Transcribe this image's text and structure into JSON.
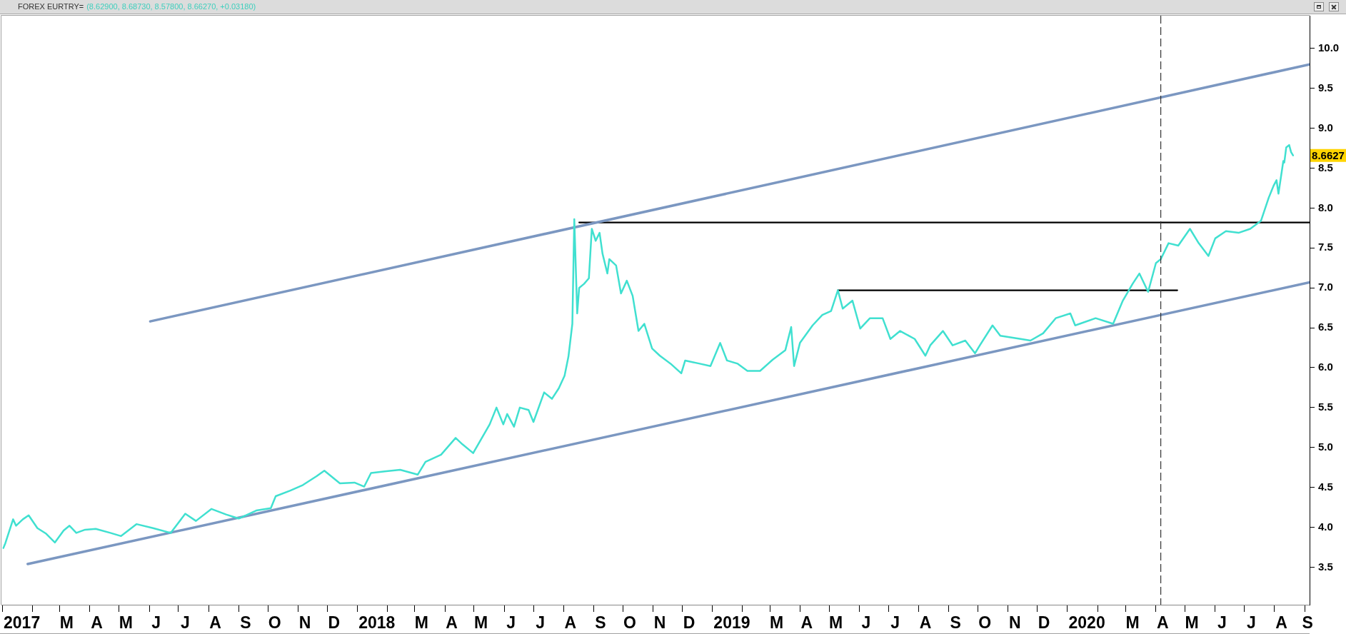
{
  "chart_data": {
    "type": "line",
    "title": "FOREX EURTRY=",
    "subtitle": "(8.62900, 8.68730, 8.57800, 8.66270, +0.03180)",
    "xlim": [
      "2016-12-31",
      "2020-09-06"
    ],
    "ylim": [
      3.03,
      10.41
    ],
    "xticks": [
      {
        "value": "2017-01",
        "label": null
      },
      {
        "value": "2017-01-21",
        "label": "2017"
      },
      {
        "value": "2017-02",
        "label": null
      },
      {
        "value": "2017-03",
        "label": null
      },
      {
        "value": "2017-03-08",
        "label": "M"
      },
      {
        "value": "2017-04",
        "label": null
      },
      {
        "value": "2017-04-08",
        "label": "A"
      },
      {
        "value": "2017-05",
        "label": null
      },
      {
        "value": "2017-05-08",
        "label": "M"
      },
      {
        "value": "2017-06",
        "label": null
      },
      {
        "value": "2017-06-08",
        "label": "J"
      },
      {
        "value": "2017-07",
        "label": null
      },
      {
        "value": "2017-07-08",
        "label": "J"
      },
      {
        "value": "2017-08",
        "label": null
      },
      {
        "value": "2017-08-08",
        "label": "A"
      },
      {
        "value": "2017-09",
        "label": null
      },
      {
        "value": "2017-09-08",
        "label": "S"
      },
      {
        "value": "2017-10",
        "label": null
      },
      {
        "value": "2017-10-08",
        "label": "O"
      },
      {
        "value": "2017-11",
        "label": null
      },
      {
        "value": "2017-11-08",
        "label": "N"
      },
      {
        "value": "2017-12",
        "label": null
      },
      {
        "value": "2017-12-08",
        "label": "D"
      },
      {
        "value": "2018-01",
        "label": null
      },
      {
        "value": "2018-01-21",
        "label": "2018"
      },
      {
        "value": "2018-02",
        "label": null
      },
      {
        "value": "2018-03",
        "label": null
      },
      {
        "value": "2018-03-08",
        "label": "M"
      },
      {
        "value": "2018-04",
        "label": null
      },
      {
        "value": "2018-04-08",
        "label": "A"
      },
      {
        "value": "2018-05",
        "label": null
      },
      {
        "value": "2018-05-08",
        "label": "M"
      },
      {
        "value": "2018-06",
        "label": null
      },
      {
        "value": "2018-06-08",
        "label": "J"
      },
      {
        "value": "2018-07",
        "label": null
      },
      {
        "value": "2018-07-08",
        "label": "J"
      },
      {
        "value": "2018-08",
        "label": null
      },
      {
        "value": "2018-08-08",
        "label": "A"
      },
      {
        "value": "2018-09",
        "label": null
      },
      {
        "value": "2018-09-08",
        "label": "S"
      },
      {
        "value": "2018-10",
        "label": null
      },
      {
        "value": "2018-10-08",
        "label": "O"
      },
      {
        "value": "2018-11",
        "label": null
      },
      {
        "value": "2018-11-08",
        "label": "N"
      },
      {
        "value": "2018-12",
        "label": null
      },
      {
        "value": "2018-12-08",
        "label": "D"
      },
      {
        "value": "2019-01",
        "label": null
      },
      {
        "value": "2019-01-21",
        "label": "2019"
      },
      {
        "value": "2019-02",
        "label": null
      },
      {
        "value": "2019-03",
        "label": null
      },
      {
        "value": "2019-03-08",
        "label": "M"
      },
      {
        "value": "2019-04",
        "label": null
      },
      {
        "value": "2019-04-08",
        "label": "A"
      },
      {
        "value": "2019-05",
        "label": null
      },
      {
        "value": "2019-05-08",
        "label": "M"
      },
      {
        "value": "2019-06",
        "label": null
      },
      {
        "value": "2019-06-08",
        "label": "J"
      },
      {
        "value": "2019-07",
        "label": null
      },
      {
        "value": "2019-07-08",
        "label": "J"
      },
      {
        "value": "2019-08",
        "label": null
      },
      {
        "value": "2019-08-08",
        "label": "A"
      },
      {
        "value": "2019-09",
        "label": null
      },
      {
        "value": "2019-09-08",
        "label": "S"
      },
      {
        "value": "2019-10",
        "label": null
      },
      {
        "value": "2019-10-08",
        "label": "O"
      },
      {
        "value": "2019-11",
        "label": null
      },
      {
        "value": "2019-11-08",
        "label": "N"
      },
      {
        "value": "2019-12",
        "label": null
      },
      {
        "value": "2019-12-08",
        "label": "D"
      },
      {
        "value": "2020-01",
        "label": null
      },
      {
        "value": "2020-01-21",
        "label": "2020"
      },
      {
        "value": "2020-02",
        "label": null
      },
      {
        "value": "2020-03",
        "label": null
      },
      {
        "value": "2020-03-08",
        "label": "M"
      },
      {
        "value": "2020-04",
        "label": null
      },
      {
        "value": "2020-04-08",
        "label": "A"
      },
      {
        "value": "2020-05",
        "label": null
      },
      {
        "value": "2020-05-08",
        "label": "M"
      },
      {
        "value": "2020-06",
        "label": null
      },
      {
        "value": "2020-06-08",
        "label": "J"
      },
      {
        "value": "2020-07",
        "label": null
      },
      {
        "value": "2020-07-08",
        "label": "J"
      },
      {
        "value": "2020-08",
        "label": null
      },
      {
        "value": "2020-08-08",
        "label": "A"
      },
      {
        "value": "2020-09",
        "label": null
      },
      {
        "value": "2020-09-04",
        "label": "S"
      }
    ],
    "yticks": [
      3.5,
      {
        "value": 4,
        "label": "4.0"
      },
      4.5,
      {
        "value": 5,
        "label": "5.0"
      },
      5.5,
      {
        "value": 6,
        "label": "6.0"
      },
      6.5,
      {
        "value": 7,
        "label": "7.0"
      },
      7.5,
      {
        "value": 8,
        "label": "8.0"
      },
      8.5,
      {
        "value": 9,
        "label": "9.0"
      },
      9.5,
      {
        "value": 10,
        "label": "10.0"
      }
    ],
    "series": [
      {
        "color": "#40e0d0",
        "x": [
          "2017-01-02",
          "2017-01-04",
          "2017-01-12",
          "2017-01-15",
          "2017-01-22",
          "2017-01-28",
          "2017-02-06",
          "2017-02-15",
          "2017-02-24",
          "2017-03-05",
          "2017-03-11",
          "2017-03-18",
          "2017-03-27",
          "2017-04-07",
          "2017-04-22",
          "2017-05-03",
          "2017-05-19",
          "2017-06-05",
          "2017-06-23",
          "2017-07-08",
          "2017-07-19",
          "2017-08-04",
          "2017-08-19",
          "2017-09-01",
          "2017-09-19",
          "2017-10-04",
          "2017-10-09",
          "2017-10-24",
          "2017-11-06",
          "2017-11-20",
          "2017-11-28",
          "2017-12-05",
          "2017-12-14",
          "2017-12-29",
          "2018-01-08",
          "2018-01-15",
          "2018-01-29",
          "2018-02-14",
          "2018-03-04",
          "2018-03-12",
          "2018-03-28",
          "2018-04-12",
          "2018-04-19",
          "2018-04-30",
          "2018-05-17",
          "2018-05-24",
          "2018-05-31",
          "2018-06-04",
          "2018-06-11",
          "2018-06-17",
          "2018-06-26",
          "2018-07-01",
          "2018-07-12",
          "2018-07-20",
          "2018-07-27",
          "2018-08-02",
          "2018-08-06",
          "2018-08-10",
          "2018-08-12",
          "2018-08-15",
          "2018-08-17",
          "2018-08-22",
          "2018-08-27",
          "2018-08-30",
          "2018-09-03",
          "2018-09-07",
          "2018-09-10",
          "2018-09-15",
          "2018-09-17",
          "2018-09-24",
          "2018-09-29",
          "2018-10-05",
          "2018-10-11",
          "2018-10-17",
          "2018-10-23",
          "2018-10-31",
          "2018-11-08",
          "2018-11-19",
          "2018-11-30",
          "2018-12-04",
          "2018-12-19",
          "2018-12-30",
          "2019-01-09",
          "2019-01-16",
          "2019-01-27",
          "2019-02-06",
          "2019-02-19",
          "2019-03-04",
          "2019-03-17",
          "2019-03-23",
          "2019-03-26",
          "2019-04-01",
          "2019-04-14",
          "2019-04-24",
          "2019-05-03",
          "2019-05-10",
          "2019-05-15",
          "2019-05-25",
          "2019-06-02",
          "2019-06-12",
          "2019-06-25",
          "2019-07-03",
          "2019-07-13",
          "2019-07-28",
          "2019-08-08",
          "2019-08-13",
          "2019-08-26",
          "2019-09-05",
          "2019-09-18",
          "2019-09-28",
          "2019-10-03",
          "2019-10-16",
          "2019-10-24",
          "2019-11-14",
          "2019-11-24",
          "2019-12-07",
          "2019-12-20",
          "2020-01-04",
          "2020-01-09",
          "2020-01-30",
          "2020-02-17",
          "2020-02-27",
          "2020-03-08",
          "2020-03-15",
          "2020-03-24",
          "2020-04-01",
          "2020-04-06",
          "2020-04-14",
          "2020-04-24",
          "2020-05-06",
          "2020-05-15",
          "2020-05-25",
          "2020-06-01",
          "2020-06-12",
          "2020-06-25",
          "2020-07-07",
          "2020-07-18",
          "2020-07-26",
          "2020-07-31",
          "2020-08-03",
          "2020-08-05",
          "2020-08-10",
          "2020-08-11",
          "2020-08-13",
          "2020-08-16",
          "2020-08-18",
          "2020-08-20"
        ],
        "values": [
          3.74,
          3.8,
          4.1,
          4.02,
          4.1,
          4.15,
          3.99,
          3.92,
          3.81,
          3.96,
          4.02,
          3.93,
          3.97,
          3.98,
          3.93,
          3.89,
          4.04,
          3.99,
          3.93,
          4.17,
          4.08,
          4.23,
          4.16,
          4.11,
          4.21,
          4.24,
          4.39,
          4.46,
          4.53,
          4.64,
          4.71,
          4.64,
          4.55,
          4.56,
          4.51,
          4.68,
          4.7,
          4.72,
          4.66,
          4.82,
          4.91,
          5.12,
          5.04,
          4.93,
          5.29,
          5.5,
          5.29,
          5.42,
          5.26,
          5.5,
          5.47,
          5.32,
          5.69,
          5.61,
          5.74,
          5.9,
          6.14,
          6.55,
          7.86,
          6.68,
          7.0,
          7.05,
          7.12,
          7.74,
          7.59,
          7.69,
          7.43,
          7.18,
          7.36,
          7.28,
          6.93,
          7.09,
          6.9,
          6.46,
          6.55,
          6.24,
          6.15,
          6.05,
          5.93,
          6.09,
          6.05,
          6.02,
          6.31,
          6.09,
          6.05,
          5.96,
          5.96,
          6.1,
          6.22,
          6.51,
          6.02,
          6.31,
          6.53,
          6.66,
          6.71,
          6.97,
          6.74,
          6.84,
          6.49,
          6.62,
          6.62,
          6.36,
          6.46,
          6.36,
          6.15,
          6.28,
          6.46,
          6.28,
          6.34,
          6.18,
          6.28,
          6.53,
          6.4,
          6.36,
          6.34,
          6.43,
          6.62,
          6.68,
          6.53,
          6.62,
          6.55,
          6.84,
          7.05,
          7.18,
          6.95,
          7.31,
          7.36,
          7.56,
          7.53,
          7.74,
          7.56,
          7.4,
          7.62,
          7.71,
          7.69,
          7.74,
          7.84,
          8.13,
          8.28,
          8.35,
          8.18,
          8.59,
          8.57,
          8.76,
          8.79,
          8.7,
          8.66
        ]
      },
      {
        "type": "line",
        "color": "#7b97c1",
        "x": [
          "2017-06-02",
          "2020-09-06"
        ],
        "values": [
          6.58,
          9.8
        ]
      },
      {
        "type": "line",
        "color": "#7b97c1",
        "x": [
          "2017-01-27",
          "2020-09-06"
        ],
        "values": [
          3.54,
          7.07
        ]
      },
      {
        "type": "line",
        "color": "#000000",
        "x": [
          "2018-08-17",
          "2020-09-06"
        ],
        "values": [
          7.82,
          7.82
        ]
      },
      {
        "type": "line",
        "color": "#000000",
        "x": [
          "2019-05-10",
          "2020-04-23"
        ],
        "values": [
          6.97,
          6.97
        ]
      }
    ],
    "ref_lines": [
      {
        "axis": "x",
        "value": "2020-04-06",
        "color": "#333333",
        "line_style": "dashed"
      }
    ],
    "annotations": [
      "8.6627"
    ]
  }
}
